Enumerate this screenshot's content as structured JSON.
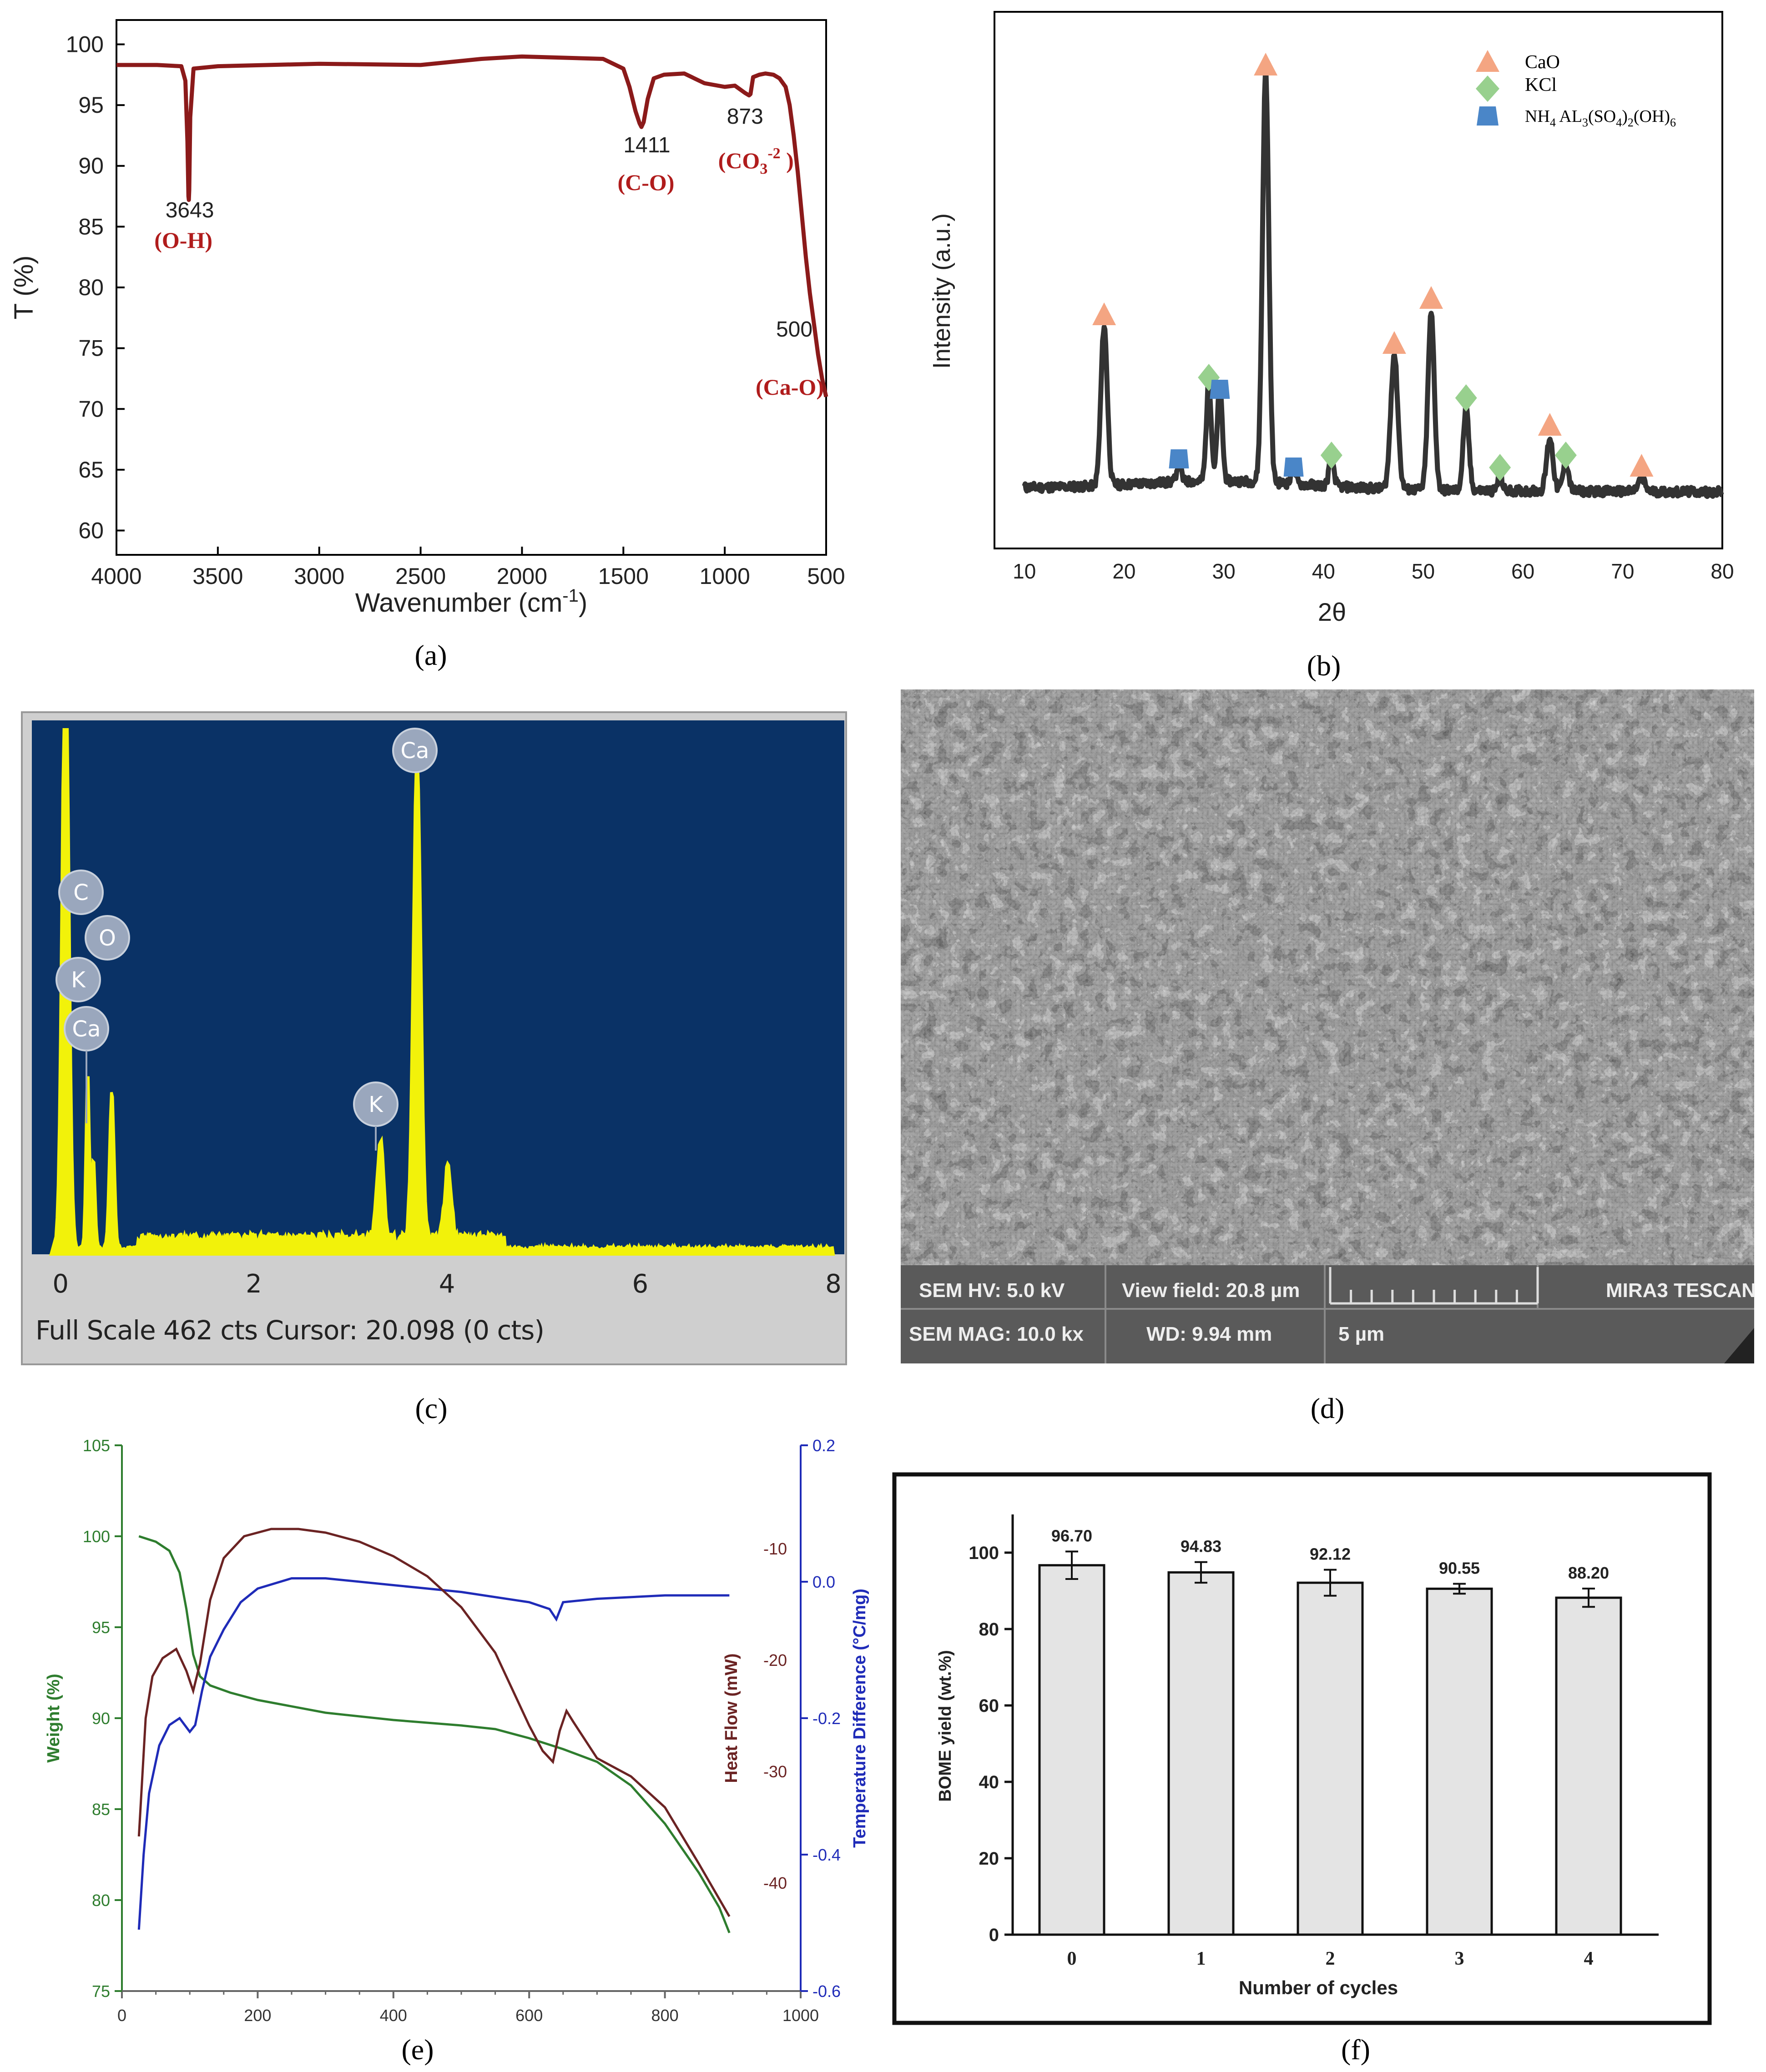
{
  "panel_labels": [
    "(a)",
    "(b)",
    "(c)",
    "(d)",
    "(e)",
    "(f)"
  ],
  "colors": {
    "ftir_line": "#8b1a1a",
    "ftir_label": "#b01c1c",
    "xrd_line": "#333333",
    "cao_marker": "#f4a582",
    "kcl_marker": "#98d08e",
    "nh4_marker": "#4a86c8",
    "eds_bg": "#0a3266",
    "eds_line": "#f2f20a",
    "tga_weight": "#2e7d2e",
    "tga_heat": "#6b2323",
    "tga_temp": "#1f2bb8",
    "bar_fill": "#e4e4e4"
  },
  "chart_data": [
    {
      "id": "a",
      "type": "line",
      "xlabel": "Wavenumber (cm",
      "xlabel_sup": "-1",
      "xlabel_end": ")",
      "ylabel": "T (%)",
      "xlim": [
        4000,
        500
      ],
      "ylim": [
        58,
        102
      ],
      "xticks": [
        "4000",
        "3500",
        "3000",
        "2500",
        "2000",
        "1500",
        "1000",
        "500"
      ],
      "yticks": [
        "100",
        "95",
        "90",
        "85",
        "80",
        "75",
        "70",
        "65",
        "60"
      ],
      "x": [
        4000,
        3800,
        3680,
        3660,
        3650,
        3645,
        3643,
        3641,
        3636,
        3620,
        3500,
        3000,
        2500,
        2200,
        2000,
        1800,
        1600,
        1500,
        1470,
        1440,
        1420,
        1411,
        1400,
        1380,
        1350,
        1300,
        1200,
        1100,
        1000,
        950,
        900,
        880,
        873,
        860,
        830,
        800,
        760,
        730,
        700,
        680,
        660,
        640,
        620,
        600,
        580,
        560,
        540,
        520,
        500
      ],
      "y": [
        98.3,
        98.3,
        98.2,
        97.0,
        92.0,
        87.5,
        87.2,
        88.0,
        94.0,
        98.0,
        98.2,
        98.4,
        98.3,
        98.8,
        99.0,
        98.9,
        98.8,
        98.0,
        96.5,
        94.5,
        93.5,
        93.2,
        93.6,
        95.5,
        97.2,
        97.5,
        97.6,
        96.8,
        96.5,
        96.6,
        96.0,
        95.8,
        95.9,
        97.3,
        97.5,
        97.6,
        97.5,
        97.2,
        96.5,
        95.0,
        92.5,
        89.5,
        86.0,
        82.5,
        79.5,
        77.0,
        74.5,
        72.5,
        71.0
      ],
      "annotations": [
        {
          "value": "3643",
          "label": "(O-H)"
        },
        {
          "value": "1411",
          "label": "(C-O)"
        },
        {
          "value": "873",
          "label": "(CO",
          "label_sub": "3",
          "label_sup": "-2",
          "label_end": " )"
        },
        {
          "value": "500",
          "label": "(Ca-O)"
        }
      ]
    },
    {
      "id": "b",
      "type": "line",
      "xlabel": "2θ",
      "ylabel": "Intensity (a.u.)",
      "xlim": [
        7,
        80
      ],
      "xticks": [
        "10",
        "20",
        "30",
        "40",
        "50",
        "60",
        "70",
        "80"
      ],
      "legend": {
        "position": "top-right",
        "entries": [
          {
            "name": "CaO",
            "marker": "triangle"
          },
          {
            "name": "KCl",
            "marker": "diamond"
          },
          {
            "name": "NH",
            "name_sub": "4",
            "name_rest": " AL",
            "name_sub2": "3",
            "name_rest2": "(SO",
            "name_sub3": "4",
            "name_rest3": ")",
            "name_sub4": "2",
            "name_rest4": "(OH)",
            "name_sub5": "6",
            "marker": "trapezoid"
          }
        ]
      },
      "peaks": [
        {
          "x": 18.0,
          "height": 0.39,
          "width": 0.45
        },
        {
          "x": 25.5,
          "height": 0.05,
          "width": 0.3
        },
        {
          "x": 28.5,
          "height": 0.24,
          "width": 0.35
        },
        {
          "x": 29.6,
          "height": 0.23,
          "width": 0.35
        },
        {
          "x": 34.2,
          "height": 1.0,
          "width": 0.45
        },
        {
          "x": 37.0,
          "height": 0.04,
          "width": 0.3
        },
        {
          "x": 40.8,
          "height": 0.07,
          "width": 0.35
        },
        {
          "x": 47.1,
          "height": 0.33,
          "width": 0.5
        },
        {
          "x": 50.8,
          "height": 0.43,
          "width": 0.45
        },
        {
          "x": 54.3,
          "height": 0.2,
          "width": 0.4
        },
        {
          "x": 57.7,
          "height": 0.04,
          "width": 0.3
        },
        {
          "x": 62.7,
          "height": 0.13,
          "width": 0.45
        },
        {
          "x": 64.3,
          "height": 0.07,
          "width": 0.4
        },
        {
          "x": 71.9,
          "height": 0.03,
          "width": 0.5
        }
      ],
      "markers": [
        {
          "phase": "CaO",
          "x": 18.0,
          "level": 0.45
        },
        {
          "phase": "CaO",
          "x": 34.2,
          "level": 1.06
        },
        {
          "phase": "CaO",
          "x": 47.1,
          "level": 0.38
        },
        {
          "phase": "CaO",
          "x": 50.8,
          "level": 0.49
        },
        {
          "phase": "CaO",
          "x": 62.7,
          "level": 0.18
        },
        {
          "phase": "CaO",
          "x": 71.9,
          "level": 0.08
        },
        {
          "phase": "KCl",
          "x": 28.5,
          "level": 0.3
        },
        {
          "phase": "KCl",
          "x": 40.8,
          "level": 0.11
        },
        {
          "phase": "KCl",
          "x": 54.3,
          "level": 0.25
        },
        {
          "phase": "KCl",
          "x": 57.7,
          "level": 0.08
        },
        {
          "phase": "KCl",
          "x": 64.3,
          "level": 0.11
        },
        {
          "phase": "NH4",
          "x": 25.5,
          "level": 0.1
        },
        {
          "phase": "NH4",
          "x": 29.6,
          "level": 0.27
        },
        {
          "phase": "NH4",
          "x": 37.0,
          "level": 0.08
        }
      ]
    },
    {
      "id": "c",
      "type": "bar",
      "xlim": [
        -0.1,
        8.0
      ],
      "xticks": [
        "0",
        "2",
        "4",
        "6",
        "8"
      ],
      "footer": "Full Scale 462 cts Cursor: 20.098  (0 cts)",
      "element_labels": [
        "C",
        "O",
        "K",
        "Ca",
        "K",
        "Ca"
      ],
      "peaks": [
        {
          "x": 0.05,
          "height": 1.2,
          "width": 0.05
        },
        {
          "x": 0.28,
          "height": 0.34,
          "width": 0.025
        },
        {
          "x": 0.34,
          "height": 0.17,
          "width": 0.025
        },
        {
          "x": 0.53,
          "height": 0.3,
          "width": 0.035
        },
        {
          "x": 3.31,
          "height": 0.19,
          "width": 0.05
        },
        {
          "x": 3.69,
          "height": 0.93,
          "width": 0.055
        },
        {
          "x": 4.01,
          "height": 0.14,
          "width": 0.05
        }
      ]
    },
    {
      "id": "e",
      "type": "line",
      "ylabel_left": "Weight (%)",
      "ylabel_mid": "Heat Flow (mW)",
      "ylabel_right": "Temperature Difference (°C/mg)",
      "xlim": [
        0,
        1000
      ],
      "ylim_weight": [
        75,
        105
      ],
      "ylim_temp": [
        -0.6,
        0.2
      ],
      "xticks": [
        "0",
        "200",
        "400",
        "600",
        "800",
        "1000"
      ],
      "yticks_left": [
        "105",
        "100",
        "95",
        "90",
        "85",
        "80",
        "75"
      ],
      "yticks_mid": [
        "-10",
        "-20",
        "-30",
        "-40"
      ],
      "yticks_right": [
        "0.2",
        "0.0",
        "-0.2",
        "-0.4",
        "-0.6"
      ],
      "series": [
        {
          "name": "weight",
          "x": [
            25,
            50,
            70,
            85,
            95,
            105,
            115,
            130,
            160,
            200,
            300,
            400,
            500,
            550,
            600,
            650,
            700,
            750,
            800,
            850,
            880,
            895
          ],
          "y": [
            100,
            99.7,
            99.2,
            98.0,
            96.0,
            93.5,
            92.3,
            91.8,
            91.4,
            91.0,
            90.3,
            89.9,
            89.6,
            89.4,
            88.9,
            88.3,
            87.6,
            86.3,
            84.2,
            81.5,
            79.6,
            78.2
          ]
        },
        {
          "name": "temperature difference",
          "x": [
            25,
            32,
            40,
            55,
            70,
            85,
            100,
            108,
            118,
            130,
            150,
            175,
            200,
            250,
            300,
            400,
            500,
            600,
            630,
            640,
            650,
            700,
            800,
            895
          ],
          "y": [
            -0.51,
            -0.4,
            -0.31,
            -0.24,
            -0.21,
            -0.2,
            -0.22,
            -0.21,
            -0.16,
            -0.11,
            -0.07,
            -0.03,
            -0.01,
            0.005,
            0.005,
            -0.005,
            -0.015,
            -0.03,
            -0.04,
            -0.055,
            -0.03,
            -0.025,
            -0.02,
            -0.02
          ]
        },
        {
          "name": "heat flow",
          "x": [
            25,
            35,
            45,
            60,
            80,
            95,
            105,
            115,
            130,
            150,
            180,
            220,
            260,
            300,
            350,
            400,
            450,
            500,
            550,
            600,
            620,
            635,
            645,
            655,
            665,
            700,
            750,
            800,
            850,
            895
          ],
          "y_weight_scale": [
            83.5,
            90,
            92.3,
            93.3,
            93.8,
            92.6,
            91.5,
            93.0,
            96.5,
            98.8,
            100.0,
            100.4,
            100.4,
            100.2,
            99.7,
            98.9,
            97.8,
            96.1,
            93.6,
            89.6,
            88.2,
            87.6,
            89.3,
            90.4,
            89.8,
            87.8,
            86.8,
            85.1,
            82.0,
            79.1
          ]
        }
      ]
    },
    {
      "id": "f",
      "type": "bar",
      "xlabel": "Number of cycles",
      "ylabel": "BOME yield (wt.%)",
      "ylim": [
        0,
        110
      ],
      "yticks": [
        "0",
        "20",
        "40",
        "60",
        "80",
        "100"
      ],
      "categories": [
        "0",
        "1",
        "2",
        "3",
        "4"
      ],
      "values": [
        96.7,
        94.83,
        92.12,
        90.55,
        88.2
      ],
      "value_labels": [
        "96.70",
        "94.83",
        "92.12",
        "90.55",
        "88.20"
      ],
      "errors": [
        3.6,
        2.7,
        3.4,
        1.3,
        2.4
      ]
    }
  ],
  "sem": {
    "hv": "SEM HV: 5.0 kV",
    "view_field": "View field: 20.8 µm",
    "brand": "MIRA3 TESCAN",
    "mag": "SEM MAG: 10.0 kx",
    "wd": "WD: 9.94 mm",
    "scale": "5 µm"
  }
}
